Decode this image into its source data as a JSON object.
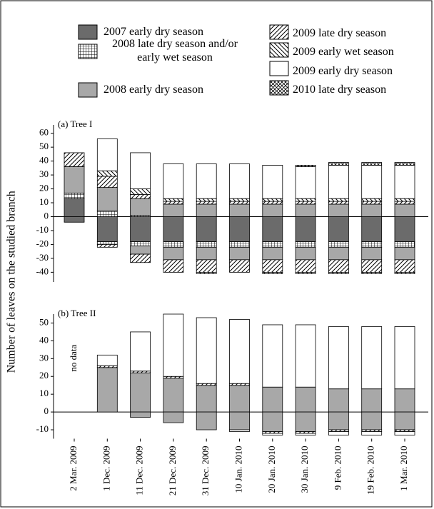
{
  "chart_data": [
    {
      "type": "stacked-bar",
      "title": "(a) Tree I",
      "ylabel": "Number of leaves on the studied branch",
      "ylim": [
        -47,
        66
      ],
      "yticks": [
        60,
        50,
        40,
        30,
        20,
        10,
        0,
        -10,
        -20,
        -30,
        -40
      ],
      "series": [
        {
          "name": "2007 early dry season",
          "fill": "#6b6b6b",
          "values": [
            13,
            null,
            null,
            null,
            null,
            null,
            null,
            null,
            null,
            null,
            null
          ],
          "below": [
            -4,
            -18,
            -18,
            -18,
            -18,
            -18,
            -18,
            -18,
            -18,
            -18,
            -18
          ]
        },
        {
          "name": "2008 late dry season and/or early wet season",
          "fill": "grid",
          "values": [
            4,
            4,
            1,
            null,
            null,
            null,
            null,
            null,
            null,
            null,
            null
          ],
          "below": [
            null,
            -2,
            -3,
            -4,
            -4,
            -4,
            -4,
            -4,
            -4,
            -4,
            -4
          ]
        },
        {
          "name": "2008 early dry season",
          "fill": "#a8a8a8",
          "values": [
            19,
            17,
            12,
            9,
            9,
            9,
            9,
            9,
            9,
            9,
            9
          ],
          "below": [
            null,
            null,
            -6,
            -9,
            -9,
            -9,
            -9,
            -9,
            -9,
            -9,
            -9
          ]
        },
        {
          "name": "2009 late dry season",
          "fill": "hatch-up",
          "values": [
            10,
            8,
            3,
            2,
            2,
            2,
            2,
            2,
            2,
            2,
            2
          ],
          "below": [
            null,
            -2,
            -6,
            -9,
            -9,
            -9,
            -9,
            -9,
            -9,
            -9,
            -9
          ]
        },
        {
          "name": "2009 early wet season",
          "fill": "hatch-down",
          "values": [
            null,
            4,
            4,
            2,
            2,
            2,
            2,
            2,
            2,
            2,
            2
          ],
          "below": [
            null,
            null,
            null,
            null,
            -1,
            null,
            -1,
            -1,
            -1,
            -1,
            -1
          ]
        },
        {
          "name": "2009 early dry season",
          "fill": "#ffffff",
          "values": [
            null,
            23,
            26,
            25,
            25,
            25,
            24,
            23,
            24,
            24,
            24
          ],
          "below": [
            null,
            null,
            null,
            null,
            null,
            null,
            null,
            null,
            null,
            null,
            null
          ]
        },
        {
          "name": "2010 late dry season",
          "fill": "cross",
          "values": [
            null,
            null,
            null,
            null,
            null,
            null,
            null,
            1,
            2,
            2,
            2
          ],
          "below": [
            null,
            null,
            null,
            null,
            null,
            null,
            null,
            null,
            null,
            null,
            null
          ]
        }
      ]
    },
    {
      "type": "stacked-bar",
      "title": "(b) Tree II",
      "annotation": "no data",
      "categories": [
        "2 Mar. 2009",
        "1 Dec. 2009",
        "11 Dec. 2009",
        "21 Dec. 2009",
        "31 Dec. 2009",
        "10 Jan. 2010",
        "20 Jan. 2010",
        "30 Jan. 2010",
        "9 Feb. 2010",
        "19 Feb. 2010",
        "1 Mar. 2010"
      ],
      "ylim": [
        -15,
        55
      ],
      "yticks": [
        50,
        40,
        30,
        20,
        10,
        0,
        -10
      ],
      "series": [
        {
          "fill": "#a8a8a8",
          "values": [
            null,
            25,
            22,
            19,
            15,
            15,
            14,
            14,
            13,
            13,
            13
          ],
          "below": [
            null,
            null,
            -3,
            -6,
            -10,
            -10,
            -11,
            -11,
            -10,
            -10,
            -10
          ]
        },
        {
          "fill": "hatch-up",
          "values": [
            null,
            1,
            1,
            1,
            1,
            1,
            null,
            null,
            null,
            null,
            null
          ],
          "below": [
            null,
            null,
            null,
            null,
            null,
            null,
            -1,
            -1,
            -1,
            -1,
            -1
          ]
        },
        {
          "fill": "#ffffff",
          "values": [
            null,
            6,
            22,
            35,
            37,
            36,
            35,
            35,
            35,
            35,
            35
          ],
          "below": [
            null,
            null,
            null,
            null,
            null,
            -1,
            -1,
            -1,
            -2,
            -2,
            -2
          ]
        }
      ]
    }
  ]
}
